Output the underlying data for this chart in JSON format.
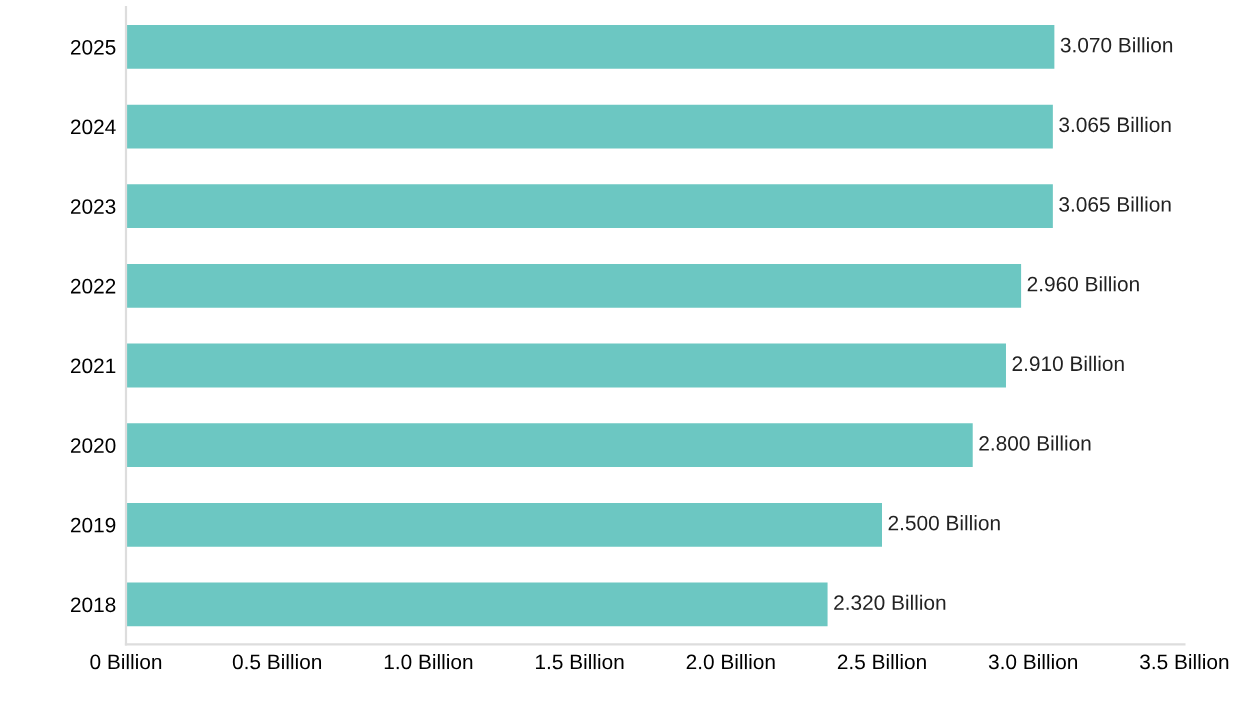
{
  "chart_data": {
    "type": "bar",
    "orientation": "horizontal",
    "categories": [
      "2025",
      "2024",
      "2023",
      "2022",
      "2021",
      "2020",
      "2019",
      "2018"
    ],
    "values": [
      3.07,
      3.065,
      3.065,
      2.96,
      2.91,
      2.8,
      2.5,
      2.32
    ],
    "value_labels": [
      "3.070 Billion",
      "3.065 Billion",
      "3.065 Billion",
      "2.960 Billion",
      "2.910 Billion",
      "2.800 Billion",
      "2.500 Billion",
      "2.320 Billion"
    ],
    "color": "#6cc7c2",
    "xlim": [
      0,
      3.5
    ],
    "xticks": [
      {
        "value": 0,
        "label": "0 Billion"
      },
      {
        "value": 0.5,
        "label": "0.5 Billion"
      },
      {
        "value": 1.0,
        "label": "1.0 Billion"
      },
      {
        "value": 1.5,
        "label": "1.5 Billion"
      },
      {
        "value": 2.0,
        "label": "2.0 Billion"
      },
      {
        "value": 2.5,
        "label": "2.5 Billion"
      },
      {
        "value": 3.0,
        "label": "3.0 Billion"
      },
      {
        "value": 3.5,
        "label": "3.5 Billion"
      }
    ],
    "grid": false
  }
}
